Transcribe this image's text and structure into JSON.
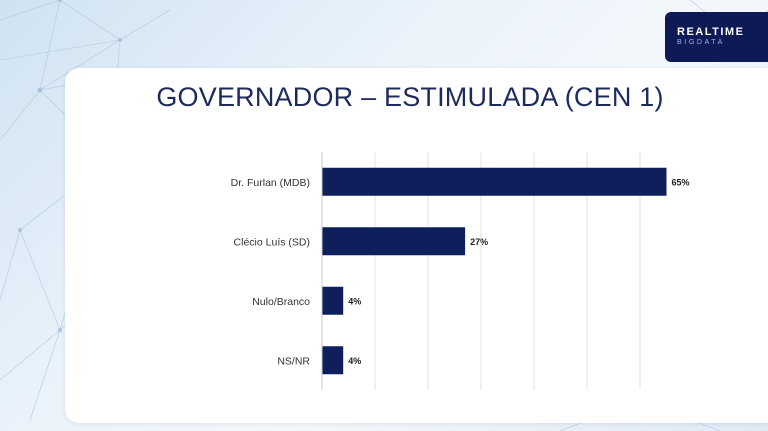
{
  "logo": {
    "line1": "REALTIME",
    "line2": "BIGDATA"
  },
  "chart_data": {
    "type": "bar",
    "orientation": "horizontal",
    "title": "GOVERNADOR – ESTIMULADA (CEN 1)",
    "categories": [
      "Dr. Furlan (MDB)",
      "Clécio Luís (SD)",
      "Nulo/Branco",
      "NS/NR"
    ],
    "values": [
      65,
      27,
      4,
      4
    ],
    "value_labels": [
      "65%",
      "27%",
      "4%",
      "4%"
    ],
    "xlim": [
      0,
      60
    ],
    "grid": true,
    "bar_color": "#0e1f5b"
  }
}
